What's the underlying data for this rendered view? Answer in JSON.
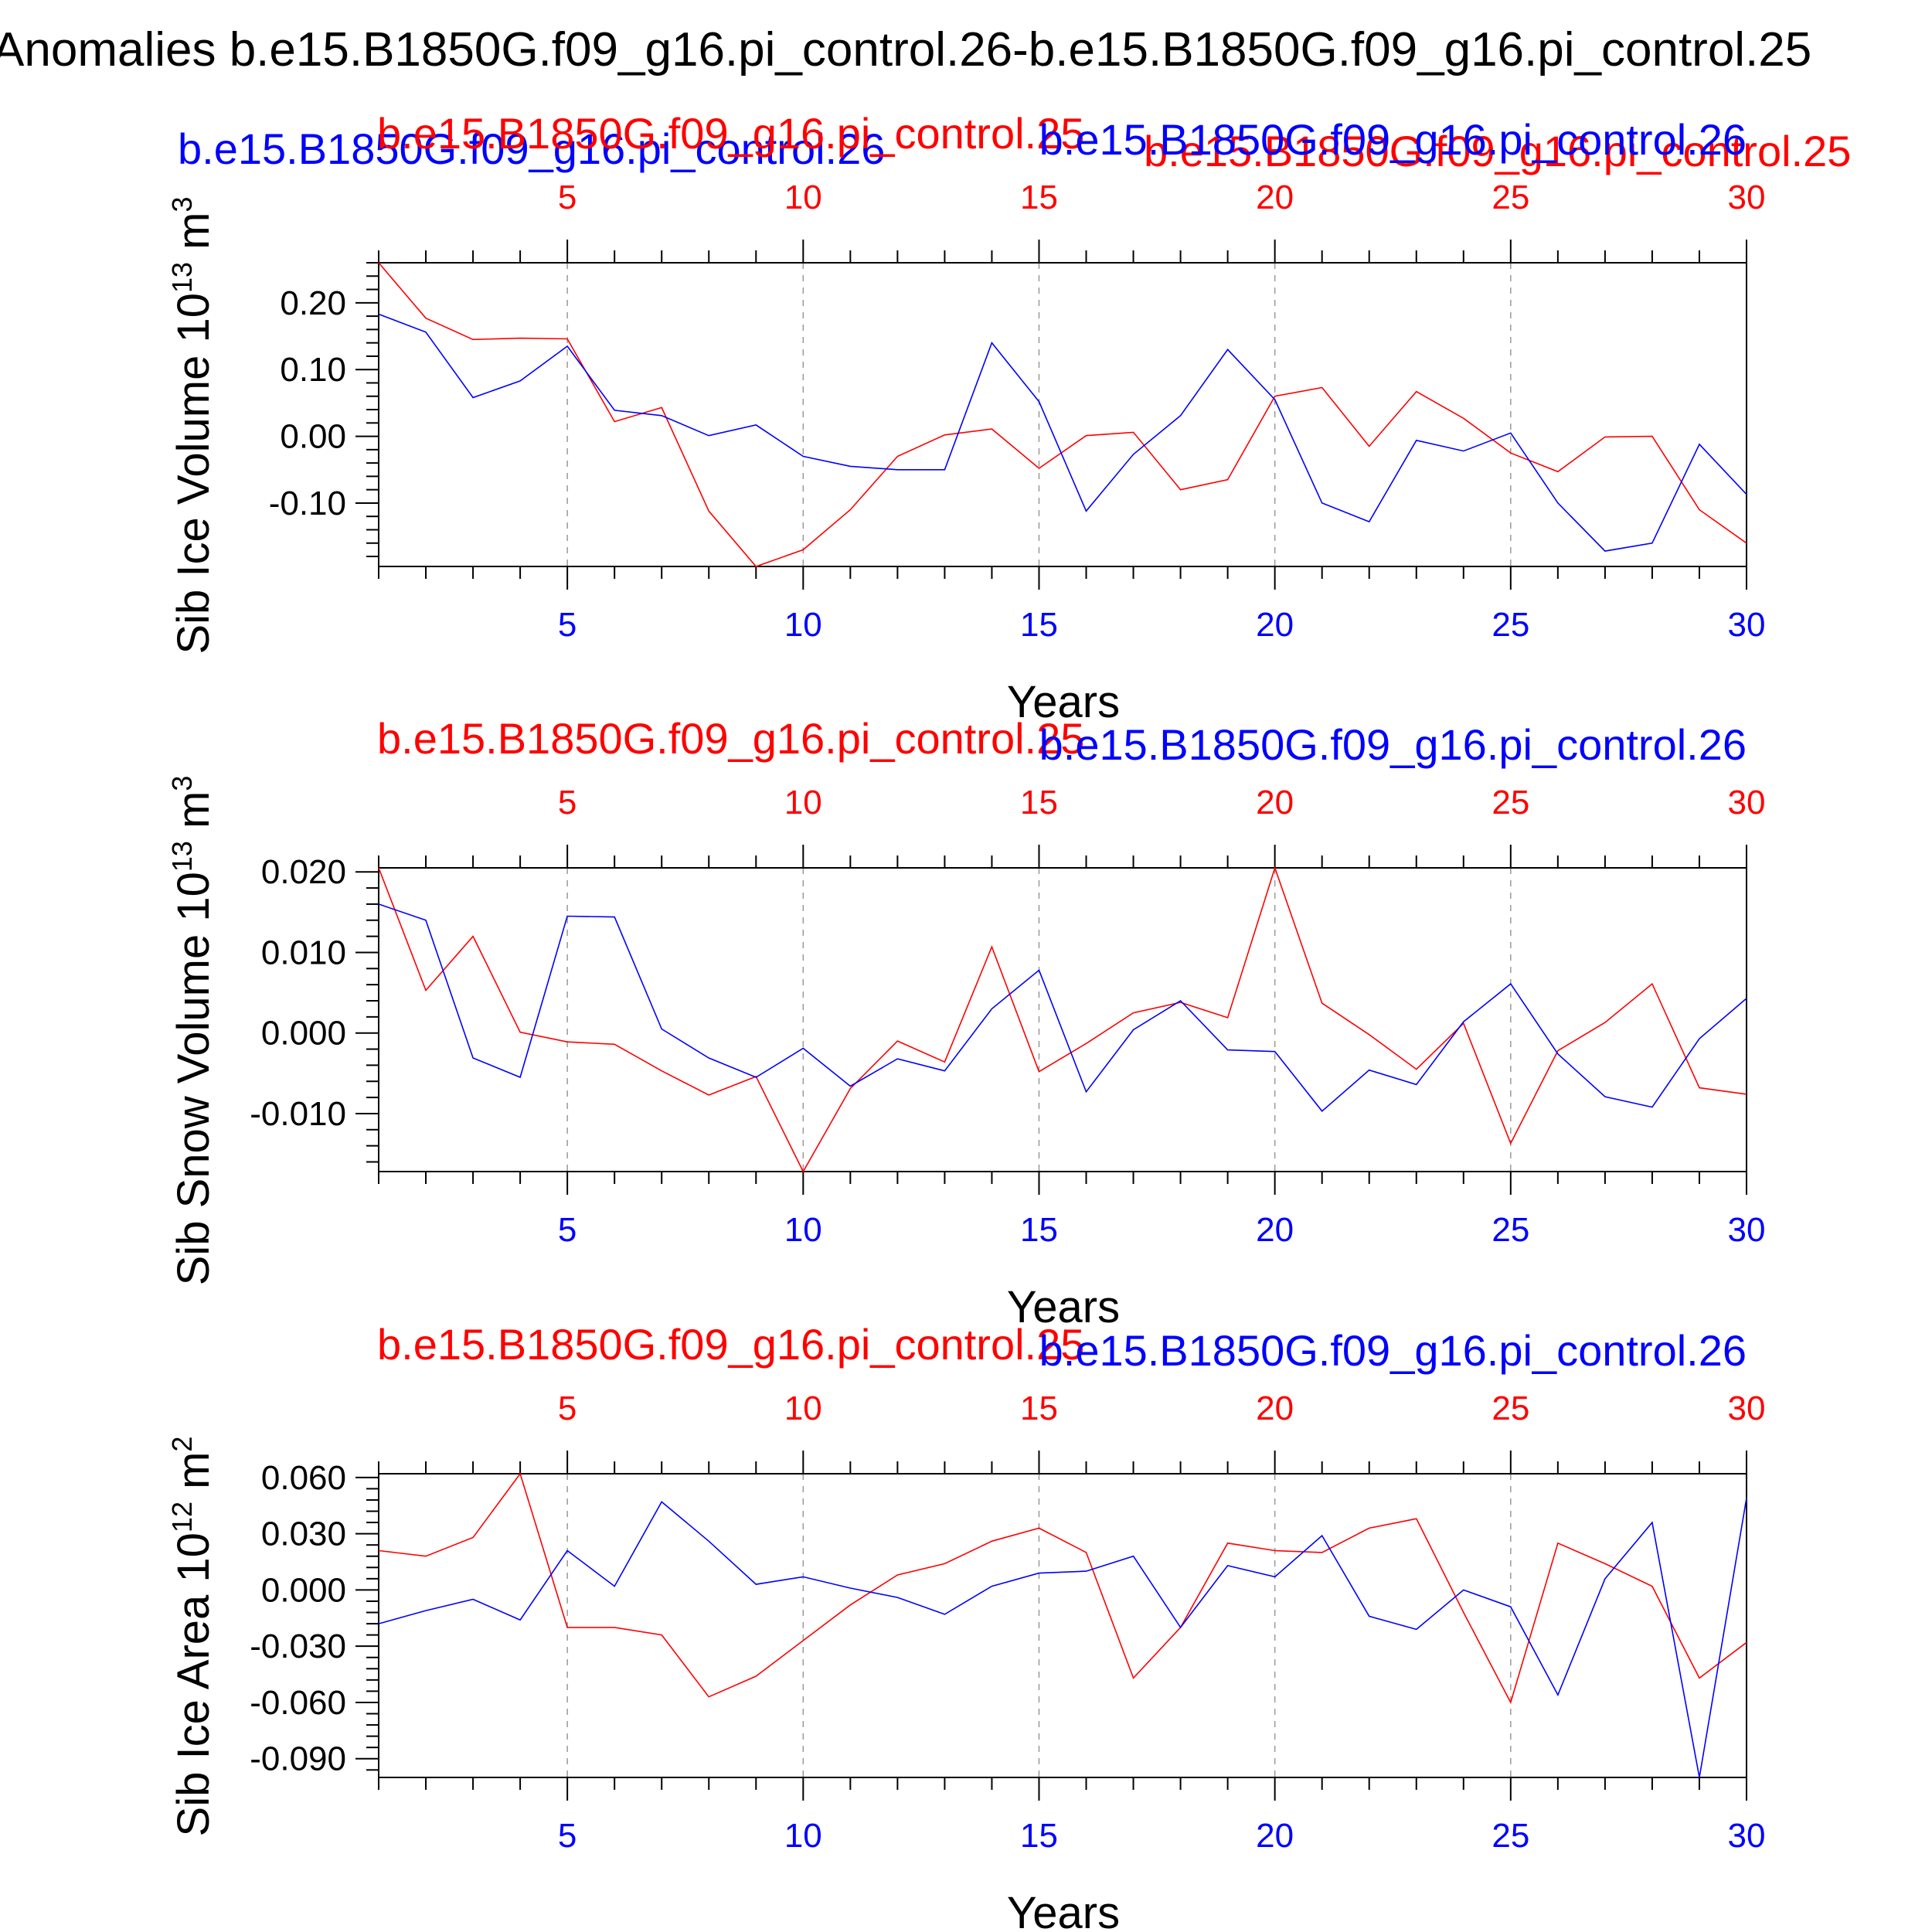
{
  "figure": {
    "main_title": "Anomalies b.e15.B1850G.f09_g16.pi_control.26-b.e15.B1850G.f09_g16.pi_control.25",
    "top_left_blue_label": "b.e15.B1850G.f09_g16.pi_control.26",
    "top_right_red_label": "b.e15.B1850G.f09_g16.pi_control.25"
  },
  "colors": {
    "case_red": "#ff0000",
    "case_blue": "#0000ff",
    "axis": "#000000",
    "grid": "#999999"
  },
  "chart_data": [
    {
      "type": "line",
      "ylabel": "Sib Ice Volume 10",
      "ylabel_exp": "13",
      "ylabel_unit": " m",
      "ylabel_unit_exp": "3",
      "xlabel": "Years",
      "top_left_label": "b.e15.B1850G.f09_g16.pi_control.25",
      "top_right_label": "b.e15.B1850G.f09_g16.pi_control.26",
      "xlim": [
        1,
        30
      ],
      "ylim": [
        -0.195,
        0.26
      ],
      "yticks": [
        -0.1,
        0.0,
        0.1,
        0.2
      ],
      "ytick_labels": [
        "-0.10",
        "0.00",
        "0.10",
        "0.20"
      ],
      "xticks": [
        5,
        10,
        15,
        20,
        25,
        30
      ],
      "xtick_labels": [
        "5",
        "10",
        "15",
        "20",
        "25",
        "30"
      ],
      "x": [
        1,
        2,
        3,
        4,
        5,
        6,
        7,
        8,
        9,
        10,
        11,
        12,
        13,
        14,
        15,
        16,
        17,
        18,
        19,
        20,
        21,
        22,
        23,
        24,
        25,
        26,
        27,
        28,
        29,
        30
      ],
      "series": [
        {
          "name": "b.e15.B1850G.f09_g16.pi_control.25",
          "color": "#ff0000",
          "values": [
            0.26,
            0.177,
            0.145,
            0.147,
            0.146,
            0.022,
            0.043,
            -0.112,
            -0.195,
            -0.17,
            -0.11,
            -0.03,
            0.002,
            0.011,
            -0.048,
            0.001,
            0.006,
            -0.08,
            -0.065,
            0.06,
            0.073,
            -0.015,
            0.067,
            0.027,
            -0.025,
            -0.053,
            -0.001,
            0.0,
            -0.11,
            -0.16
          ]
        },
        {
          "name": "b.e15.B1850G.f09_g16.pi_control.26",
          "color": "#0000ff",
          "values": [
            0.183,
            0.156,
            0.058,
            0.083,
            0.135,
            0.039,
            0.031,
            0.001,
            0.017,
            -0.03,
            -0.045,
            -0.05,
            -0.05,
            0.14,
            0.052,
            -0.112,
            -0.027,
            0.031,
            0.13,
            0.055,
            -0.1,
            -0.128,
            -0.006,
            -0.022,
            0.005,
            -0.1,
            -0.172,
            -0.16,
            -0.012,
            -0.087
          ]
        }
      ]
    },
    {
      "type": "line",
      "ylabel": "Sib Snow Volume 10",
      "ylabel_exp": "13",
      "ylabel_unit": " m",
      "ylabel_unit_exp": "3",
      "xlabel": "Years",
      "top_left_label": "b.e15.B1850G.f09_g16.pi_control.25",
      "top_right_label": "b.e15.B1850G.f09_g16.pi_control.26",
      "xlim": [
        1,
        30
      ],
      "ylim": [
        -0.0172,
        0.0205
      ],
      "yticks": [
        -0.01,
        0.0,
        0.01,
        0.02
      ],
      "ytick_labels": [
        "-0.010",
        "0.000",
        "0.010",
        "0.020"
      ],
      "xticks": [
        5,
        10,
        15,
        20,
        25,
        30
      ],
      "xtick_labels": [
        "5",
        "10",
        "15",
        "20",
        "25",
        "30"
      ],
      "x": [
        1,
        2,
        3,
        4,
        5,
        6,
        7,
        8,
        9,
        10,
        11,
        12,
        13,
        14,
        15,
        16,
        17,
        18,
        19,
        20,
        21,
        22,
        23,
        24,
        25,
        26,
        27,
        28,
        29,
        30
      ],
      "series": [
        {
          "name": "b.e15.B1850G.f09_g16.pi_control.25",
          "color": "#ff0000",
          "values": [
            0.0205,
            0.0053,
            0.012,
            0.0001,
            -0.0011,
            -0.0014,
            -0.0047,
            -0.0077,
            -0.0054,
            -0.0172,
            -0.0069,
            -0.001,
            -0.0036,
            0.0107,
            -0.0048,
            -0.0013,
            0.0025,
            0.0038,
            0.0019,
            0.0205,
            0.0037,
            -0.0002,
            -0.0045,
            0.0012,
            -0.0137,
            -0.0022,
            0.0013,
            0.0061,
            -0.0068,
            -0.0076
          ]
        },
        {
          "name": "b.e15.B1850G.f09_g16.pi_control.26",
          "color": "#0000ff",
          "values": [
            0.016,
            0.014,
            -0.0031,
            -0.0055,
            0.0145,
            0.0144,
            0.0005,
            -0.0031,
            -0.0055,
            -0.0019,
            -0.0066,
            -0.0032,
            -0.0047,
            0.003,
            0.0078,
            -0.0073,
            0.0004,
            0.004,
            -0.0021,
            -0.0023,
            -0.0097,
            -0.0046,
            -0.0064,
            0.0014,
            0.0061,
            -0.0026,
            -0.0079,
            -0.0092,
            -0.0007,
            0.0043
          ]
        }
      ]
    },
    {
      "type": "line",
      "ylabel": "Sib Ice Area 10",
      "ylabel_exp": "12",
      "ylabel_unit": " m",
      "ylabel_unit_exp": "2",
      "xlabel": "Years",
      "top_left_label": "b.e15.B1850G.f09_g16.pi_control.25",
      "top_right_label": "b.e15.B1850G.f09_g16.pi_control.26",
      "xlim": [
        1,
        30
      ],
      "ylim": [
        -0.1,
        0.062
      ],
      "yticks": [
        -0.09,
        -0.06,
        -0.03,
        0.0,
        0.03,
        0.06
      ],
      "ytick_labels": [
        "-0.090",
        "-0.060",
        "-0.030",
        "0.000",
        "0.030",
        "0.060"
      ],
      "xticks": [
        5,
        10,
        15,
        20,
        25,
        30
      ],
      "xtick_labels": [
        "5",
        "10",
        "15",
        "20",
        "25",
        "30"
      ],
      "x": [
        1,
        2,
        3,
        4,
        5,
        6,
        7,
        8,
        9,
        10,
        11,
        12,
        13,
        14,
        15,
        16,
        17,
        18,
        19,
        20,
        21,
        22,
        23,
        24,
        25,
        26,
        27,
        28,
        29,
        30
      ],
      "series": [
        {
          "name": "b.e15.B1850G.f09_g16.pi_control.25",
          "color": "#ff0000",
          "values": [
            0.021,
            0.018,
            0.028,
            0.062,
            -0.02,
            -0.02,
            -0.024,
            -0.057,
            -0.046,
            -0.027,
            -0.008,
            0.008,
            0.014,
            0.026,
            0.033,
            0.02,
            -0.047,
            -0.02,
            0.025,
            0.021,
            0.02,
            0.033,
            0.038,
            -0.012,
            -0.06,
            0.025,
            0.014,
            0.002,
            -0.047,
            -0.028
          ]
        },
        {
          "name": "b.e15.B1850G.f09_g16.pi_control.26",
          "color": "#0000ff",
          "values": [
            -0.018,
            -0.011,
            -0.005,
            -0.016,
            0.021,
            0.002,
            0.047,
            0.026,
            0.003,
            0.007,
            0.001,
            -0.004,
            -0.013,
            0.002,
            0.009,
            0.01,
            0.018,
            -0.02,
            0.013,
            0.007,
            0.029,
            -0.014,
            -0.021,
            0.0,
            -0.009,
            -0.056,
            0.006,
            0.036,
            -0.1,
            0.049
          ]
        }
      ]
    }
  ]
}
